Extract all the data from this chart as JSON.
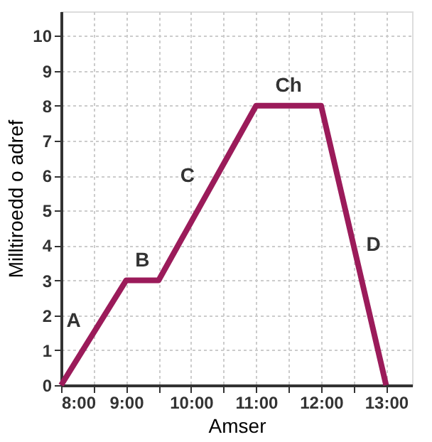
{
  "chart_data": {
    "type": "line",
    "xlabel": "Amser",
    "ylabel": "Milltiroedd o adref",
    "x": [
      8,
      9,
      9.5,
      11,
      12,
      13
    ],
    "series": [
      {
        "color": "#9b1b5a",
        "values": [
          0,
          3,
          3,
          8,
          8,
          0
        ]
      }
    ],
    "xlim": [
      8,
      13.4
    ],
    "ylim": [
      0,
      10.7
    ],
    "xticks": [
      {
        "value": 8,
        "label": "8:00"
      },
      {
        "value": 8.5,
        "label": null
      },
      {
        "value": 9,
        "label": "9:00"
      },
      {
        "value": 9.5,
        "label": null
      },
      {
        "value": 10,
        "label": "10:00"
      },
      {
        "value": 10.5,
        "label": null
      },
      {
        "value": 11,
        "label": "11:00"
      },
      {
        "value": 11.5,
        "label": null
      },
      {
        "value": 12,
        "label": "12:00"
      },
      {
        "value": 12.5,
        "label": null
      },
      {
        "value": 13,
        "label": "13:00"
      }
    ],
    "yticks": [
      0,
      1,
      2,
      3,
      4,
      5,
      6,
      7,
      8,
      9,
      10
    ],
    "annotations": [
      "A",
      "B",
      "C",
      "Ch",
      "D"
    ],
    "grid": true,
    "marker": "none",
    "line_style": "solid"
  }
}
